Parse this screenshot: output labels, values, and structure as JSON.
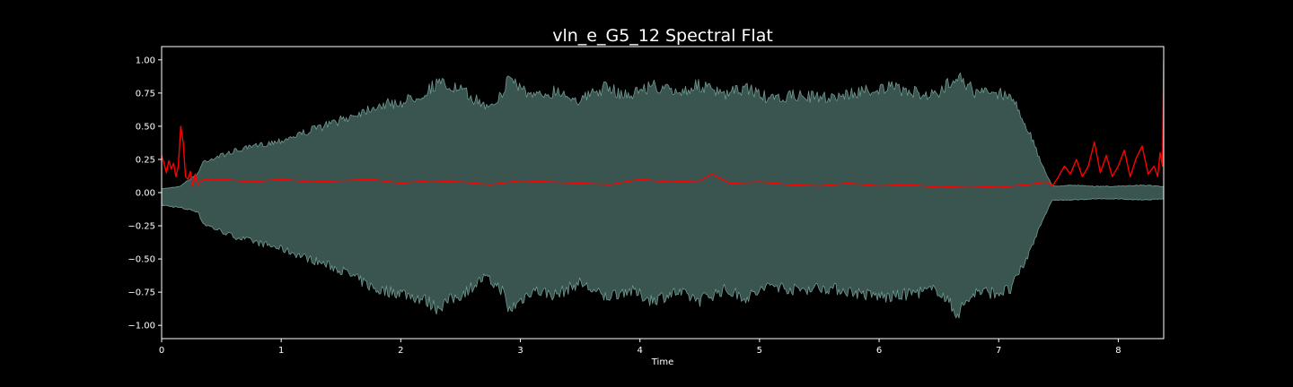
{
  "chart_data": {
    "type": "line",
    "title": "vln_e_G5_12 Spectral Flat",
    "xlabel": "Time",
    "ylabel": "",
    "xlim": [
      0,
      8.38
    ],
    "ylim": [
      -1.1,
      1.1
    ],
    "x_ticks": [
      0,
      1,
      2,
      3,
      4,
      5,
      6,
      7,
      8
    ],
    "x_tick_labels": [
      "0",
      "1",
      "2",
      "3",
      "4",
      "5",
      "6",
      "7",
      "8"
    ],
    "y_ticks": [
      1.0,
      0.75,
      0.5,
      0.25,
      0.0,
      -0.25,
      -0.5,
      -0.75,
      -1.0
    ],
    "y_tick_labels": [
      "1.00",
      "0.75",
      "0.50",
      "0.25",
      "0.00",
      "−0.25",
      "−0.50",
      "−0.75",
      "−1.00"
    ],
    "grid": false,
    "legend": "none",
    "colors": {
      "background": "#000000",
      "waveform_fill": "#3a5550",
      "waveform_edge": "#6f9a92",
      "flatness_line": "#ff0000",
      "axes": "#ffffff"
    },
    "waveform_envelope": {
      "x": [
        0,
        0.15,
        0.3,
        0.35,
        0.6,
        1.0,
        1.5,
        1.8,
        2.0,
        2.2,
        2.3,
        2.5,
        2.7,
        2.85,
        2.9,
        3.1,
        3.3,
        3.5,
        3.7,
        3.9,
        4.1,
        4.3,
        4.5,
        4.7,
        4.9,
        5.1,
        5.3,
        5.5,
        5.7,
        5.9,
        6.1,
        6.3,
        6.5,
        6.65,
        6.8,
        7.0,
        7.1,
        7.25,
        7.35,
        7.45,
        7.6,
        7.8,
        8.0,
        8.2,
        8.38
      ],
      "upper": [
        0.03,
        0.05,
        0.15,
        0.25,
        0.33,
        0.42,
        0.58,
        0.7,
        0.72,
        0.8,
        0.88,
        0.82,
        0.7,
        0.77,
        0.94,
        0.76,
        0.82,
        0.74,
        0.84,
        0.78,
        0.86,
        0.8,
        0.86,
        0.78,
        0.84,
        0.74,
        0.78,
        0.76,
        0.78,
        0.82,
        0.84,
        0.8,
        0.78,
        0.96,
        0.8,
        0.8,
        0.78,
        0.5,
        0.25,
        0.05,
        0.06,
        0.05,
        0.05,
        0.06,
        0.05
      ],
      "lower": [
        -0.1,
        -0.12,
        -0.15,
        -0.25,
        -0.35,
        -0.45,
        -0.62,
        -0.78,
        -0.8,
        -0.86,
        -0.92,
        -0.82,
        -0.68,
        -0.78,
        -0.95,
        -0.78,
        -0.82,
        -0.72,
        -0.84,
        -0.78,
        -0.86,
        -0.8,
        -0.86,
        -0.78,
        -0.84,
        -0.74,
        -0.78,
        -0.76,
        -0.78,
        -0.82,
        -0.84,
        -0.8,
        -0.78,
        -0.97,
        -0.8,
        -0.8,
        -0.78,
        -0.5,
        -0.25,
        -0.06,
        -0.06,
        -0.05,
        -0.05,
        -0.06,
        -0.05
      ]
    },
    "series": [
      {
        "x": [
          0.0,
          0.02,
          0.04,
          0.06,
          0.08,
          0.1,
          0.12,
          0.14,
          0.16,
          0.18,
          0.2,
          0.22,
          0.24,
          0.26,
          0.28,
          0.3,
          0.32,
          0.36,
          0.5,
          0.75,
          1.0,
          1.25,
          1.5,
          1.75,
          2.0,
          2.25,
          2.5,
          2.75,
          3.0,
          3.25,
          3.5,
          3.75,
          4.0,
          4.25,
          4.5,
          4.6,
          4.75,
          5.0,
          5.25,
          5.5,
          5.75,
          6.0,
          6.25,
          6.5,
          6.75,
          7.0,
          7.25,
          7.4,
          7.45,
          7.5,
          7.55,
          7.6,
          7.65,
          7.7,
          7.75,
          7.8,
          7.85,
          7.9,
          7.95,
          8.0,
          8.05,
          8.1,
          8.15,
          8.2,
          8.25,
          8.3,
          8.33,
          8.35,
          8.37,
          8.38
        ],
        "y": [
          0.28,
          0.22,
          0.15,
          0.24,
          0.18,
          0.22,
          0.12,
          0.2,
          0.5,
          0.38,
          0.12,
          0.1,
          0.16,
          0.05,
          0.14,
          0.06,
          0.08,
          0.1,
          0.1,
          0.08,
          0.1,
          0.08,
          0.09,
          0.1,
          0.07,
          0.09,
          0.08,
          0.06,
          0.09,
          0.08,
          0.07,
          0.06,
          0.1,
          0.08,
          0.09,
          0.14,
          0.07,
          0.08,
          0.06,
          0.05,
          0.07,
          0.05,
          0.06,
          0.04,
          0.05,
          0.04,
          0.06,
          0.08,
          0.05,
          0.12,
          0.2,
          0.14,
          0.25,
          0.12,
          0.2,
          0.38,
          0.15,
          0.28,
          0.12,
          0.2,
          0.32,
          0.12,
          0.26,
          0.35,
          0.14,
          0.2,
          0.12,
          0.3,
          0.2,
          1.0
        ]
      }
    ]
  }
}
